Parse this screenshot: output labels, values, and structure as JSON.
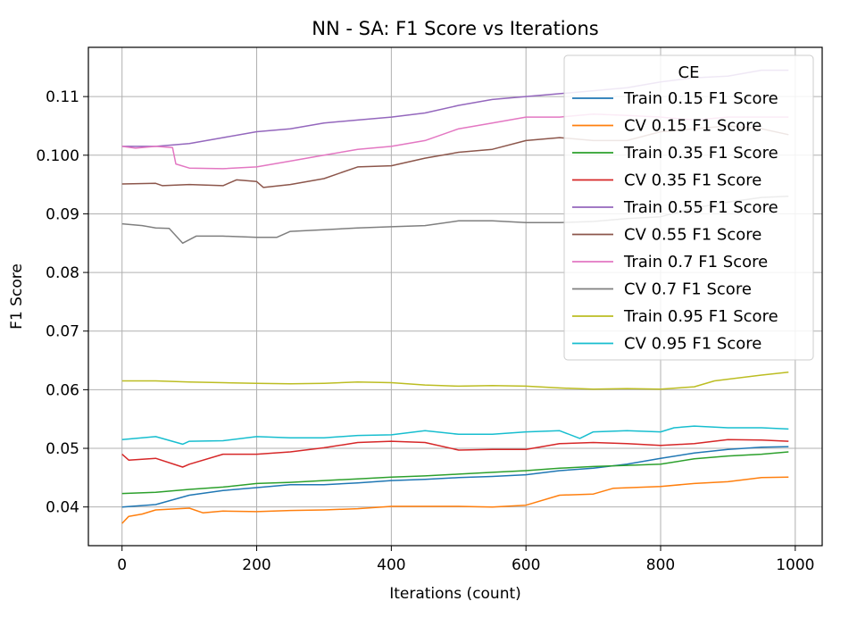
{
  "chart_data": {
    "type": "line",
    "title": "NN - SA: F1 Score vs Iterations",
    "xlabel": "Iterations (count)",
    "ylabel": "F1 Score",
    "xlim": [
      -50,
      1040
    ],
    "ylim": [
      0.0334,
      0.1184
    ],
    "xticks": [
      0,
      200,
      400,
      600,
      800,
      1000
    ],
    "xtick_labels": [
      "0",
      "200",
      "400",
      "600",
      "800",
      "1000"
    ],
    "yticks": [
      0.04,
      0.05,
      0.06,
      0.07,
      0.08,
      0.09,
      0.1,
      0.11
    ],
    "ytick_labels": [
      "0.04",
      "0.05",
      "0.06",
      "0.07",
      "0.08",
      "0.09",
      "0.100",
      "0.11"
    ],
    "grid": true,
    "legend": {
      "title": "CE",
      "position": "top-right"
    },
    "series": [
      {
        "name": "Train 0.15 F1 Score",
        "color": "#1f77b4",
        "points": [
          [
            0,
            0.04
          ],
          [
            50,
            0.0404
          ],
          [
            100,
            0.042
          ],
          [
            150,
            0.0428
          ],
          [
            200,
            0.0433
          ],
          [
            250,
            0.0438
          ],
          [
            300,
            0.0438
          ],
          [
            350,
            0.0441
          ],
          [
            400,
            0.0445
          ],
          [
            450,
            0.0447
          ],
          [
            500,
            0.045
          ],
          [
            550,
            0.0452
          ],
          [
            600,
            0.0455
          ],
          [
            650,
            0.0462
          ],
          [
            700,
            0.0466
          ],
          [
            750,
            0.0473
          ],
          [
            800,
            0.0483
          ],
          [
            850,
            0.0492
          ],
          [
            900,
            0.0498
          ],
          [
            950,
            0.0502
          ],
          [
            990,
            0.0503
          ]
        ]
      },
      {
        "name": "CV 0.15 F1 Score",
        "color": "#ff7f0e",
        "points": [
          [
            0,
            0.0372
          ],
          [
            10,
            0.0384
          ],
          [
            30,
            0.0388
          ],
          [
            50,
            0.0395
          ],
          [
            100,
            0.0398
          ],
          [
            120,
            0.039
          ],
          [
            150,
            0.0393
          ],
          [
            200,
            0.0392
          ],
          [
            250,
            0.0394
          ],
          [
            300,
            0.0395
          ],
          [
            350,
            0.0397
          ],
          [
            400,
            0.0401
          ],
          [
            450,
            0.0401
          ],
          [
            500,
            0.0401
          ],
          [
            550,
            0.04
          ],
          [
            600,
            0.0403
          ],
          [
            650,
            0.042
          ],
          [
            700,
            0.0422
          ],
          [
            730,
            0.0432
          ],
          [
            800,
            0.0435
          ],
          [
            850,
            0.044
          ],
          [
            900,
            0.0443
          ],
          [
            950,
            0.045
          ],
          [
            990,
            0.0451
          ]
        ]
      },
      {
        "name": "Train 0.35 F1 Score",
        "color": "#2ca02c",
        "points": [
          [
            0,
            0.0423
          ],
          [
            50,
            0.0425
          ],
          [
            100,
            0.043
          ],
          [
            150,
            0.0434
          ],
          [
            200,
            0.044
          ],
          [
            250,
            0.0442
          ],
          [
            300,
            0.0445
          ],
          [
            350,
            0.0448
          ],
          [
            400,
            0.0451
          ],
          [
            450,
            0.0453
          ],
          [
            500,
            0.0456
          ],
          [
            550,
            0.0459
          ],
          [
            600,
            0.0462
          ],
          [
            650,
            0.0466
          ],
          [
            700,
            0.0469
          ],
          [
            750,
            0.0471
          ],
          [
            800,
            0.0473
          ],
          [
            850,
            0.0482
          ],
          [
            900,
            0.0487
          ],
          [
            950,
            0.049
          ],
          [
            990,
            0.0494
          ]
        ]
      },
      {
        "name": "CV 0.35 F1 Score",
        "color": "#d62728",
        "points": [
          [
            0,
            0.049
          ],
          [
            10,
            0.048
          ],
          [
            50,
            0.0483
          ],
          [
            90,
            0.0468
          ],
          [
            100,
            0.0473
          ],
          [
            150,
            0.049
          ],
          [
            200,
            0.049
          ],
          [
            250,
            0.0494
          ],
          [
            300,
            0.0501
          ],
          [
            350,
            0.051
          ],
          [
            400,
            0.0512
          ],
          [
            450,
            0.051
          ],
          [
            500,
            0.0497
          ],
          [
            550,
            0.0498
          ],
          [
            600,
            0.0498
          ],
          [
            650,
            0.0508
          ],
          [
            700,
            0.051
          ],
          [
            750,
            0.0508
          ],
          [
            800,
            0.0505
          ],
          [
            850,
            0.0508
          ],
          [
            900,
            0.0515
          ],
          [
            950,
            0.0514
          ],
          [
            990,
            0.0512
          ]
        ]
      },
      {
        "name": "Train 0.55 F1 Score",
        "color": "#9467bd",
        "points": [
          [
            0,
            0.1015
          ],
          [
            50,
            0.1015
          ],
          [
            100,
            0.102
          ],
          [
            150,
            0.103
          ],
          [
            200,
            0.104
          ],
          [
            250,
            0.1045
          ],
          [
            300,
            0.1055
          ],
          [
            350,
            0.106
          ],
          [
            400,
            0.1065
          ],
          [
            450,
            0.1072
          ],
          [
            500,
            0.1085
          ],
          [
            550,
            0.1095
          ],
          [
            600,
            0.11
          ],
          [
            650,
            0.1105
          ],
          [
            700,
            0.111
          ],
          [
            750,
            0.1115
          ],
          [
            800,
            0.1125
          ],
          [
            850,
            0.1132
          ],
          [
            900,
            0.1135
          ],
          [
            950,
            0.1145
          ],
          [
            990,
            0.1145
          ]
        ]
      },
      {
        "name": "CV 0.55 F1 Score",
        "color": "#8c564b",
        "points": [
          [
            0,
            0.0951
          ],
          [
            50,
            0.0952
          ],
          [
            60,
            0.0948
          ],
          [
            100,
            0.095
          ],
          [
            150,
            0.0948
          ],
          [
            170,
            0.0958
          ],
          [
            200,
            0.0955
          ],
          [
            210,
            0.0945
          ],
          [
            250,
            0.095
          ],
          [
            300,
            0.096
          ],
          [
            350,
            0.098
          ],
          [
            400,
            0.0982
          ],
          [
            450,
            0.0995
          ],
          [
            500,
            0.1005
          ],
          [
            550,
            0.101
          ],
          [
            600,
            0.1025
          ],
          [
            650,
            0.103
          ],
          [
            700,
            0.1025
          ],
          [
            750,
            0.1025
          ],
          [
            800,
            0.104
          ],
          [
            850,
            0.1045
          ],
          [
            900,
            0.105
          ],
          [
            950,
            0.1045
          ],
          [
            990,
            0.1035
          ]
        ]
      },
      {
        "name": "Train 0.7 F1 Score",
        "color": "#e377c2",
        "points": [
          [
            0,
            0.1015
          ],
          [
            20,
            0.1012
          ],
          [
            50,
            0.1015
          ],
          [
            75,
            0.1013
          ],
          [
            80,
            0.0985
          ],
          [
            100,
            0.0978
          ],
          [
            150,
            0.0977
          ],
          [
            200,
            0.098
          ],
          [
            250,
            0.099
          ],
          [
            300,
            0.1
          ],
          [
            350,
            0.101
          ],
          [
            400,
            0.1015
          ],
          [
            450,
            0.1025
          ],
          [
            500,
            0.1045
          ],
          [
            550,
            0.1055
          ],
          [
            600,
            0.1065
          ],
          [
            650,
            0.1065
          ],
          [
            700,
            0.107
          ],
          [
            750,
            0.1068
          ],
          [
            800,
            0.1065
          ],
          [
            850,
            0.106
          ],
          [
            900,
            0.1065
          ],
          [
            950,
            0.1065
          ],
          [
            990,
            0.1065
          ]
        ]
      },
      {
        "name": "CV 0.7 F1 Score",
        "color": "#7f7f7f",
        "points": [
          [
            0,
            0.0883
          ],
          [
            30,
            0.088
          ],
          [
            50,
            0.0876
          ],
          [
            70,
            0.0875
          ],
          [
            90,
            0.085
          ],
          [
            110,
            0.0862
          ],
          [
            150,
            0.0862
          ],
          [
            200,
            0.086
          ],
          [
            230,
            0.086
          ],
          [
            250,
            0.087
          ],
          [
            300,
            0.0873
          ],
          [
            350,
            0.0876
          ],
          [
            400,
            0.0878
          ],
          [
            450,
            0.088
          ],
          [
            500,
            0.0888
          ],
          [
            550,
            0.0888
          ],
          [
            600,
            0.0885
          ],
          [
            650,
            0.0885
          ],
          [
            700,
            0.0887
          ],
          [
            750,
            0.0892
          ],
          [
            800,
            0.0895
          ],
          [
            850,
            0.091
          ],
          [
            900,
            0.092
          ],
          [
            950,
            0.0928
          ],
          [
            990,
            0.093
          ]
        ]
      },
      {
        "name": "Train 0.95 F1 Score",
        "color": "#bcbd22",
        "points": [
          [
            0,
            0.0615
          ],
          [
            50,
            0.0615
          ],
          [
            100,
            0.0613
          ],
          [
            150,
            0.0612
          ],
          [
            200,
            0.0611
          ],
          [
            250,
            0.061
          ],
          [
            300,
            0.0611
          ],
          [
            350,
            0.0613
          ],
          [
            400,
            0.0612
          ],
          [
            450,
            0.0608
          ],
          [
            500,
            0.0606
          ],
          [
            550,
            0.0607
          ],
          [
            600,
            0.0606
          ],
          [
            650,
            0.0603
          ],
          [
            700,
            0.0601
          ],
          [
            750,
            0.0602
          ],
          [
            800,
            0.0601
          ],
          [
            850,
            0.0605
          ],
          [
            880,
            0.0615
          ],
          [
            900,
            0.0618
          ],
          [
            950,
            0.0625
          ],
          [
            990,
            0.063
          ]
        ]
      },
      {
        "name": "CV 0.95 F1 Score",
        "color": "#17becf",
        "points": [
          [
            0,
            0.0515
          ],
          [
            50,
            0.052
          ],
          [
            90,
            0.0507
          ],
          [
            100,
            0.0512
          ],
          [
            150,
            0.0513
          ],
          [
            200,
            0.052
          ],
          [
            250,
            0.0518
          ],
          [
            300,
            0.0518
          ],
          [
            350,
            0.0522
          ],
          [
            400,
            0.0523
          ],
          [
            450,
            0.053
          ],
          [
            500,
            0.0524
          ],
          [
            550,
            0.0524
          ],
          [
            600,
            0.0528
          ],
          [
            650,
            0.053
          ],
          [
            680,
            0.0517
          ],
          [
            700,
            0.0528
          ],
          [
            750,
            0.053
          ],
          [
            800,
            0.0528
          ],
          [
            820,
            0.0535
          ],
          [
            850,
            0.0538
          ],
          [
            900,
            0.0535
          ],
          [
            950,
            0.0535
          ],
          [
            990,
            0.0533
          ]
        ]
      }
    ]
  }
}
